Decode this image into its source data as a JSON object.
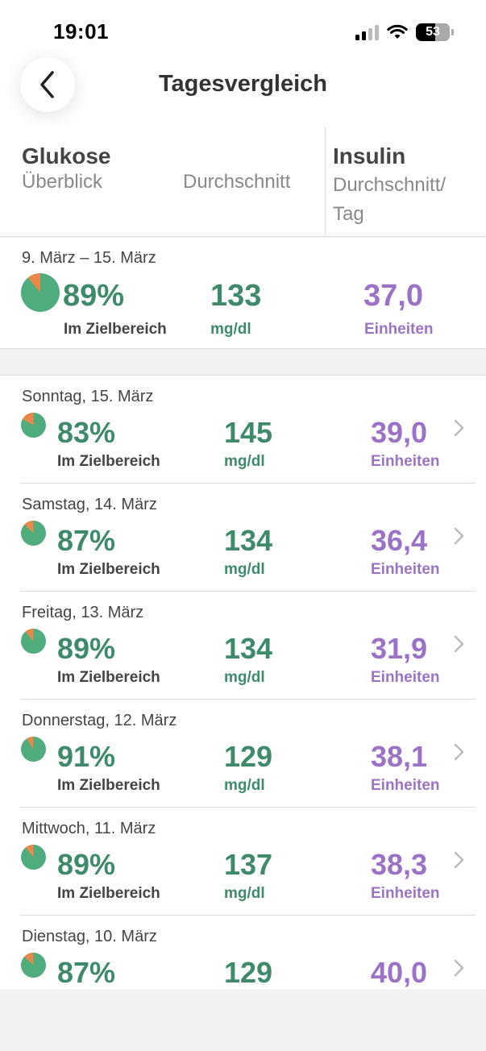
{
  "status_bar": {
    "time": "19:01",
    "battery": "53"
  },
  "nav": {
    "title": "Tagesvergleich"
  },
  "columns": {
    "glucose_title": "Glukose",
    "overview": "Überblick",
    "average": "Durchschnitt",
    "insulin_title": "Insulin",
    "insulin_avg": "Durchschnitt/ Tag"
  },
  "summary": {
    "range": "9. März – 15. März",
    "in_range_pct": "89%",
    "in_range_fraction": 0.89,
    "in_range_label": "Im Zielbereich",
    "avg": "133",
    "avg_unit": "mg/dl",
    "insulin": "37,0",
    "insulin_unit": "Einheiten"
  },
  "days": [
    {
      "date": "Sonntag, 15. März",
      "pct": "83%",
      "fraction": 0.83,
      "label": "Im Zielbereich",
      "avg": "145",
      "unit": "mg/dl",
      "insulin": "39,0",
      "insulin_unit": "Einheiten"
    },
    {
      "date": "Samstag, 14. März",
      "pct": "87%",
      "fraction": 0.87,
      "label": "Im Zielbereich",
      "avg": "134",
      "unit": "mg/dl",
      "insulin": "36,4",
      "insulin_unit": "Einheiten"
    },
    {
      "date": "Freitag, 13. März",
      "pct": "89%",
      "fraction": 0.89,
      "label": "Im Zielbereich",
      "avg": "134",
      "unit": "mg/dl",
      "insulin": "31,9",
      "insulin_unit": "Einheiten"
    },
    {
      "date": "Donnerstag, 12. März",
      "pct": "91%",
      "fraction": 0.91,
      "label": "Im Zielbereich",
      "avg": "129",
      "unit": "mg/dl",
      "insulin": "38,1",
      "insulin_unit": "Einheiten"
    },
    {
      "date": "Mittwoch, 11. März",
      "pct": "89%",
      "fraction": 0.89,
      "label": "Im Zielbereich",
      "avg": "137",
      "unit": "mg/dl",
      "insulin": "38,3",
      "insulin_unit": "Einheiten"
    },
    {
      "date": "Dienstag, 10. März",
      "pct": "87%",
      "fraction": 0.87,
      "label": "",
      "avg": "129",
      "unit": "",
      "insulin": "40,0",
      "insulin_unit": ""
    }
  ],
  "colors": {
    "in_range": "#4fac7c",
    "out_of_range": "#e8894a",
    "glucose_text": "#3e8a6a",
    "insulin_text": "#9b72c6"
  },
  "icons": {
    "back": "chevron-left-icon",
    "row_chevron": "chevron-right-icon"
  }
}
